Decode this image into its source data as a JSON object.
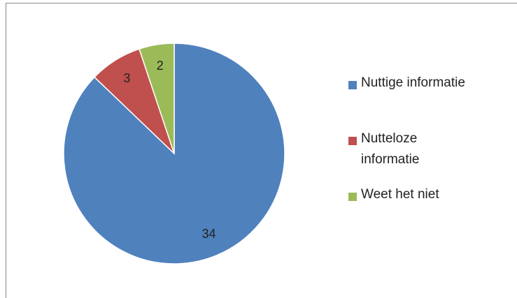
{
  "chart_data": {
    "type": "pie",
    "categories": [
      "Nuttige informatie",
      "Nutteloze informatie",
      "Weet het niet"
    ],
    "values": [
      34,
      3,
      2
    ],
    "colors": [
      "#4f81bd",
      "#c0504d",
      "#9bbb59"
    ],
    "legend": "right"
  }
}
